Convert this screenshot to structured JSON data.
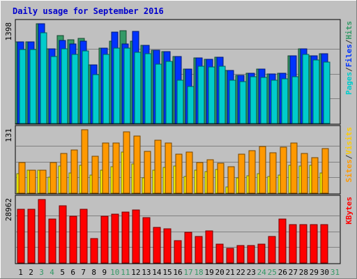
{
  "chart_data": {
    "title": "Daily usage for September 2016",
    "x": [
      "1",
      "2",
      "3",
      "4",
      "5",
      "6",
      "7",
      "8",
      "9",
      "10",
      "11",
      "12",
      "13",
      "14",
      "15",
      "16",
      "17",
      "18",
      "19",
      "20",
      "21",
      "22",
      "23",
      "24",
      "25",
      "26",
      "27",
      "28",
      "29",
      "30",
      "31"
    ],
    "weekend_days": [
      "3",
      "4",
      "10",
      "11",
      "17",
      "18",
      "24",
      "25",
      "31"
    ],
    "panels": [
      {
        "type": "bar",
        "max_label": "1398",
        "ymax": 1398,
        "legend": [
          "Pages",
          "/",
          "Files",
          "/",
          "Hits"
        ],
        "legend_colors": [
          "#00cccc",
          "#333333",
          "#0033ff",
          "#333333",
          "#339966"
        ],
        "series": [
          {
            "name": "Hits",
            "color": "#339966",
            "values": [
              1142,
              1142,
              1398,
              1044,
              1230,
              1170,
              1193,
              823,
              1056,
              1156,
              1296,
              1149,
              1095,
              1022,
              1011,
              938,
              760,
              921,
              897,
              924,
              744,
              678,
              703,
              758,
              697,
              704,
              949,
              1047,
              946,
              974
            ]
          },
          {
            "name": "Files",
            "color": "#0033ff",
            "values": [
              1142,
              1142,
              1398,
              1044,
              1164,
              1115,
              1156,
              823,
              1056,
              1285,
              1112,
              1288,
              1091,
              1022,
              1011,
              938,
              760,
              921,
              897,
              924,
              744,
              678,
              703,
              758,
              697,
              704,
              949,
              1047,
              946,
              974
            ]
          },
          {
            "name": "Pages",
            "color": "#00cccc",
            "values": [
              1039,
              1039,
              1273,
              935,
              1050,
              965,
              1017,
              689,
              969,
              1056,
              1058,
              1002,
              980,
              831,
              868,
              608,
              523,
              805,
              788,
              804,
              608,
              582,
              654,
              641,
              609,
              626,
              653,
              963,
              887,
              864
            ]
          }
        ]
      },
      {
        "type": "bar",
        "max_label": "131",
        "ymax": 131,
        "legend": [
          "Sites",
          "/",
          "Visits"
        ],
        "legend_colors": [
          "#ff9900",
          "#333333",
          "#ffcc00"
        ],
        "series": [
          {
            "name": "Visits",
            "color": "#ffff00",
            "values": [
              40,
              47,
              48,
              33,
              56,
              42,
              57,
              37,
              48,
              55,
              85,
              60,
              32,
              48,
              53,
              56,
              35,
              48,
              45,
              49,
              13,
              32,
              36,
              41,
              34,
              38,
              58,
              56,
              57,
              42
            ]
          },
          {
            "name": "Sites",
            "color": "#ff9900",
            "values": [
              64,
              47,
              47,
              63,
              82,
              89,
              131,
              77,
              104,
              103,
              127,
              118,
              87,
              110,
              103,
              80,
              85,
              64,
              69,
              62,
              55,
              80,
              88,
              96,
              83,
              95,
              104,
              82,
              73,
              92
            ]
          }
        ]
      },
      {
        "type": "bar",
        "max_label": "28962",
        "ymax": 28962,
        "legend": [
          "KBytes"
        ],
        "legend_colors": [
          "#ff0000"
        ],
        "series": [
          {
            "name": "KBytes",
            "color": "#ff0000",
            "values": [
              24430,
              24430,
              28962,
              20000,
              26170,
              21190,
              24430,
              11050,
              21190,
              22280,
              23140,
              24150,
              20720,
              16330,
              15600,
              10090,
              13850,
              12160,
              14640,
              8490,
              6770,
              7960,
              7960,
              8490,
              12160,
              20000,
              17480,
              17480,
              17480,
              17480
            ]
          }
        ]
      }
    ]
  }
}
